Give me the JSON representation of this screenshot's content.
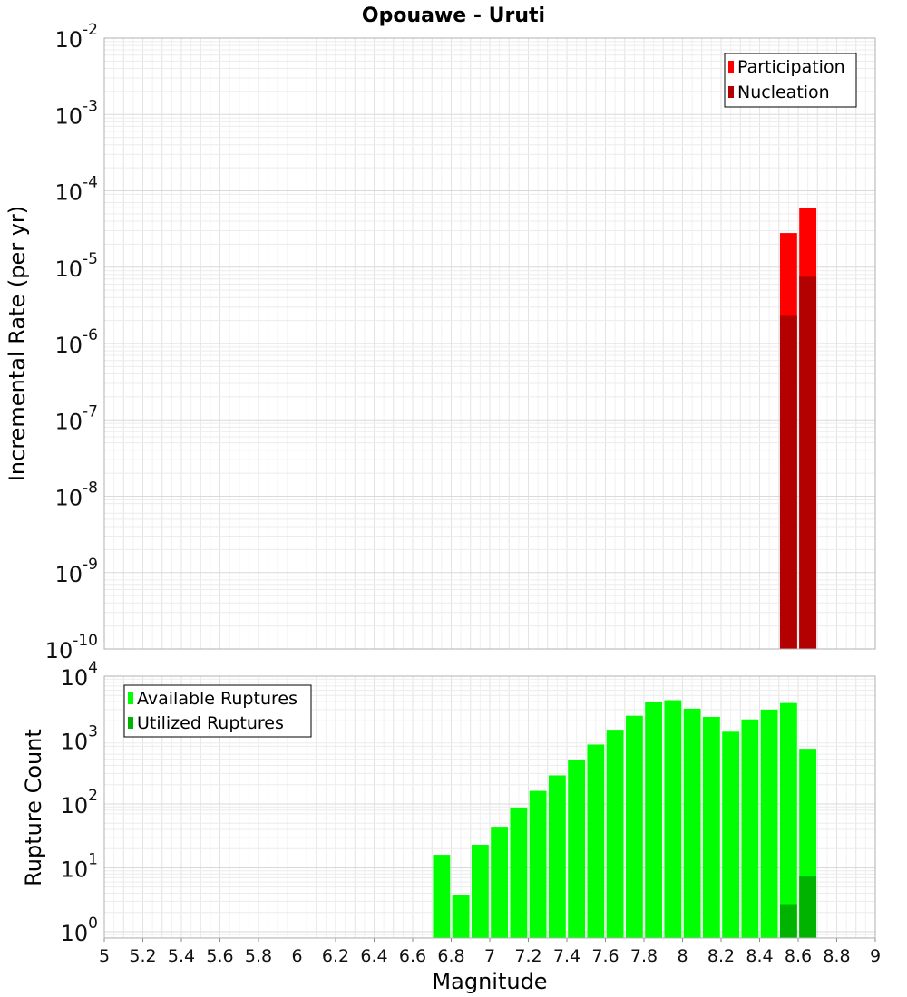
{
  "chart_data": [
    {
      "type": "bar",
      "title": "Opouawe - Uruti",
      "xlabel": "",
      "ylabel": "Incremental Rate (per yr)",
      "yscale": "log",
      "ylim_exp": [
        -10,
        -2
      ],
      "xlim": [
        5,
        9
      ],
      "bar_width": 0.1,
      "grid": true,
      "legend_position": "top-right",
      "y_tick_base": "10",
      "y_tick_exponents": [
        "-2",
        "-3",
        "-4",
        "-5",
        "-6",
        "-7",
        "-8",
        "-9",
        "-10"
      ],
      "series": [
        {
          "name": "Participation",
          "color": "#ff0000",
          "x": [
            8.55,
            8.65
          ],
          "values": [
            2.8e-05,
            6e-05
          ]
        },
        {
          "name": "Nucleation",
          "color": "#b30000",
          "x": [
            8.55,
            8.65
          ],
          "values": [
            2.3e-06,
            7.5e-06
          ]
        }
      ]
    },
    {
      "type": "bar",
      "title": "",
      "xlabel": "Magnitude",
      "ylabel": "Rupture Count",
      "yscale": "log",
      "ylim_exp": [
        -0.1,
        4
      ],
      "xlim": [
        5,
        9
      ],
      "bar_width": 0.1,
      "grid": true,
      "legend_position": "top-left",
      "y_tick_base": "10",
      "y_tick_exponents": [
        "4",
        "3",
        "2",
        "1",
        "0"
      ],
      "x_ticks": [
        "5",
        "5.2",
        "5.4",
        "5.6",
        "5.8",
        "6",
        "6.2",
        "6.4",
        "6.6",
        "6.8",
        "7",
        "7.2",
        "7.4",
        "7.6",
        "7.8",
        "8",
        "8.2",
        "8.4",
        "8.6",
        "8.8",
        "9"
      ],
      "series": [
        {
          "name": "Available Ruptures",
          "color": "#00ff00",
          "x": [
            6.75,
            6.85,
            6.95,
            7.05,
            7.15,
            7.25,
            7.35,
            7.45,
            7.55,
            7.65,
            7.75,
            7.85,
            7.95,
            8.05,
            8.15,
            8.25,
            8.35,
            8.45,
            8.55,
            8.65
          ],
          "values": [
            16,
            3.7,
            23,
            44,
            88,
            160,
            280,
            490,
            850,
            1450,
            2400,
            3900,
            4200,
            3100,
            2300,
            1350,
            2100,
            3000,
            3800,
            730
          ]
        },
        {
          "name": "Utilized Ruptures",
          "color": "#00b300",
          "x": [
            8.55,
            8.65
          ],
          "values": [
            2.7,
            7.3
          ]
        }
      ]
    }
  ]
}
